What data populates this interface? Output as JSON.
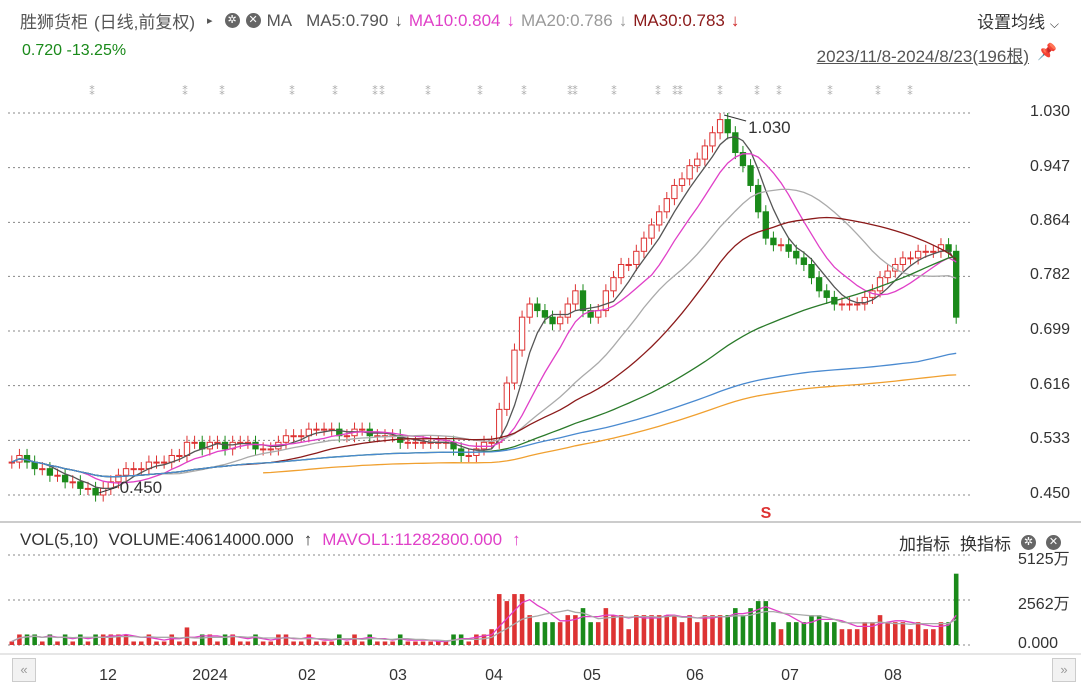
{
  "header": {
    "stock_name": "胜狮货柜",
    "mode": "(日线,前复权)",
    "ma_label": "MA",
    "ma5": "MA5:0.790",
    "ma10": "MA10:0.804",
    "ma20": "MA20:0.786",
    "ma30": "MA30:0.783",
    "arrow": "↓",
    "setting": "设置均线",
    "price_change": "0.720 -13.25%",
    "date_range": "2023/11/8-2024/8/23(196根)"
  },
  "volume_header": {
    "vol_label": "VOL(5,10)",
    "volume": "VOLUME:40614000.000",
    "mavol1": "MAVOL1:11282800.000",
    "up_arrow": "↑",
    "add_indicator": "加指标",
    "switch_indicator": "换指标"
  },
  "chart_data": [
    {
      "type": "candlestick",
      "title": "",
      "y_ticks": [
        "1.030",
        "0.947",
        "0.864",
        "0.782",
        "0.699",
        "0.616",
        "0.533",
        "0.450"
      ],
      "ylim": [
        0.45,
        1.03
      ],
      "x_ticks": [
        "12",
        "2024",
        "02",
        "03",
        "04",
        "05",
        "06",
        "07",
        "08"
      ],
      "annotations": [
        {
          "text": "1.030",
          "type": "high"
        },
        {
          "text": "0.450",
          "type": "low"
        },
        {
          "text": "S",
          "type": "signal"
        }
      ],
      "close_series": [
        0.5,
        0.51,
        0.5,
        0.49,
        0.49,
        0.48,
        0.48,
        0.47,
        0.47,
        0.46,
        0.46,
        0.45,
        0.46,
        0.47,
        0.48,
        0.49,
        0.49,
        0.49,
        0.5,
        0.5,
        0.5,
        0.51,
        0.51,
        0.53,
        0.53,
        0.52,
        0.53,
        0.53,
        0.52,
        0.53,
        0.53,
        0.53,
        0.52,
        0.52,
        0.52,
        0.53,
        0.54,
        0.54,
        0.54,
        0.55,
        0.55,
        0.55,
        0.55,
        0.54,
        0.54,
        0.55,
        0.55,
        0.54,
        0.54,
        0.54,
        0.54,
        0.53,
        0.53,
        0.53,
        0.53,
        0.53,
        0.53,
        0.53,
        0.52,
        0.51,
        0.51,
        0.52,
        0.53,
        0.53,
        0.58,
        0.62,
        0.67,
        0.72,
        0.74,
        0.73,
        0.72,
        0.71,
        0.72,
        0.74,
        0.76,
        0.73,
        0.72,
        0.73,
        0.76,
        0.78,
        0.8,
        0.8,
        0.82,
        0.84,
        0.86,
        0.88,
        0.9,
        0.92,
        0.93,
        0.95,
        0.96,
        0.98,
        1.0,
        1.02,
        1.0,
        0.97,
        0.95,
        0.92,
        0.88,
        0.84,
        0.83,
        0.83,
        0.82,
        0.81,
        0.8,
        0.78,
        0.76,
        0.75,
        0.74,
        0.74,
        0.74,
        0.74,
        0.75,
        0.76,
        0.78,
        0.79,
        0.8,
        0.81,
        0.81,
        0.82,
        0.82,
        0.82,
        0.83,
        0.82,
        0.72
      ]
    },
    {
      "type": "bar",
      "title": "",
      "y_ticks": [
        "5125万",
        "2562万",
        "0.000"
      ],
      "ylim": [
        0,
        5125
      ]
    }
  ]
}
